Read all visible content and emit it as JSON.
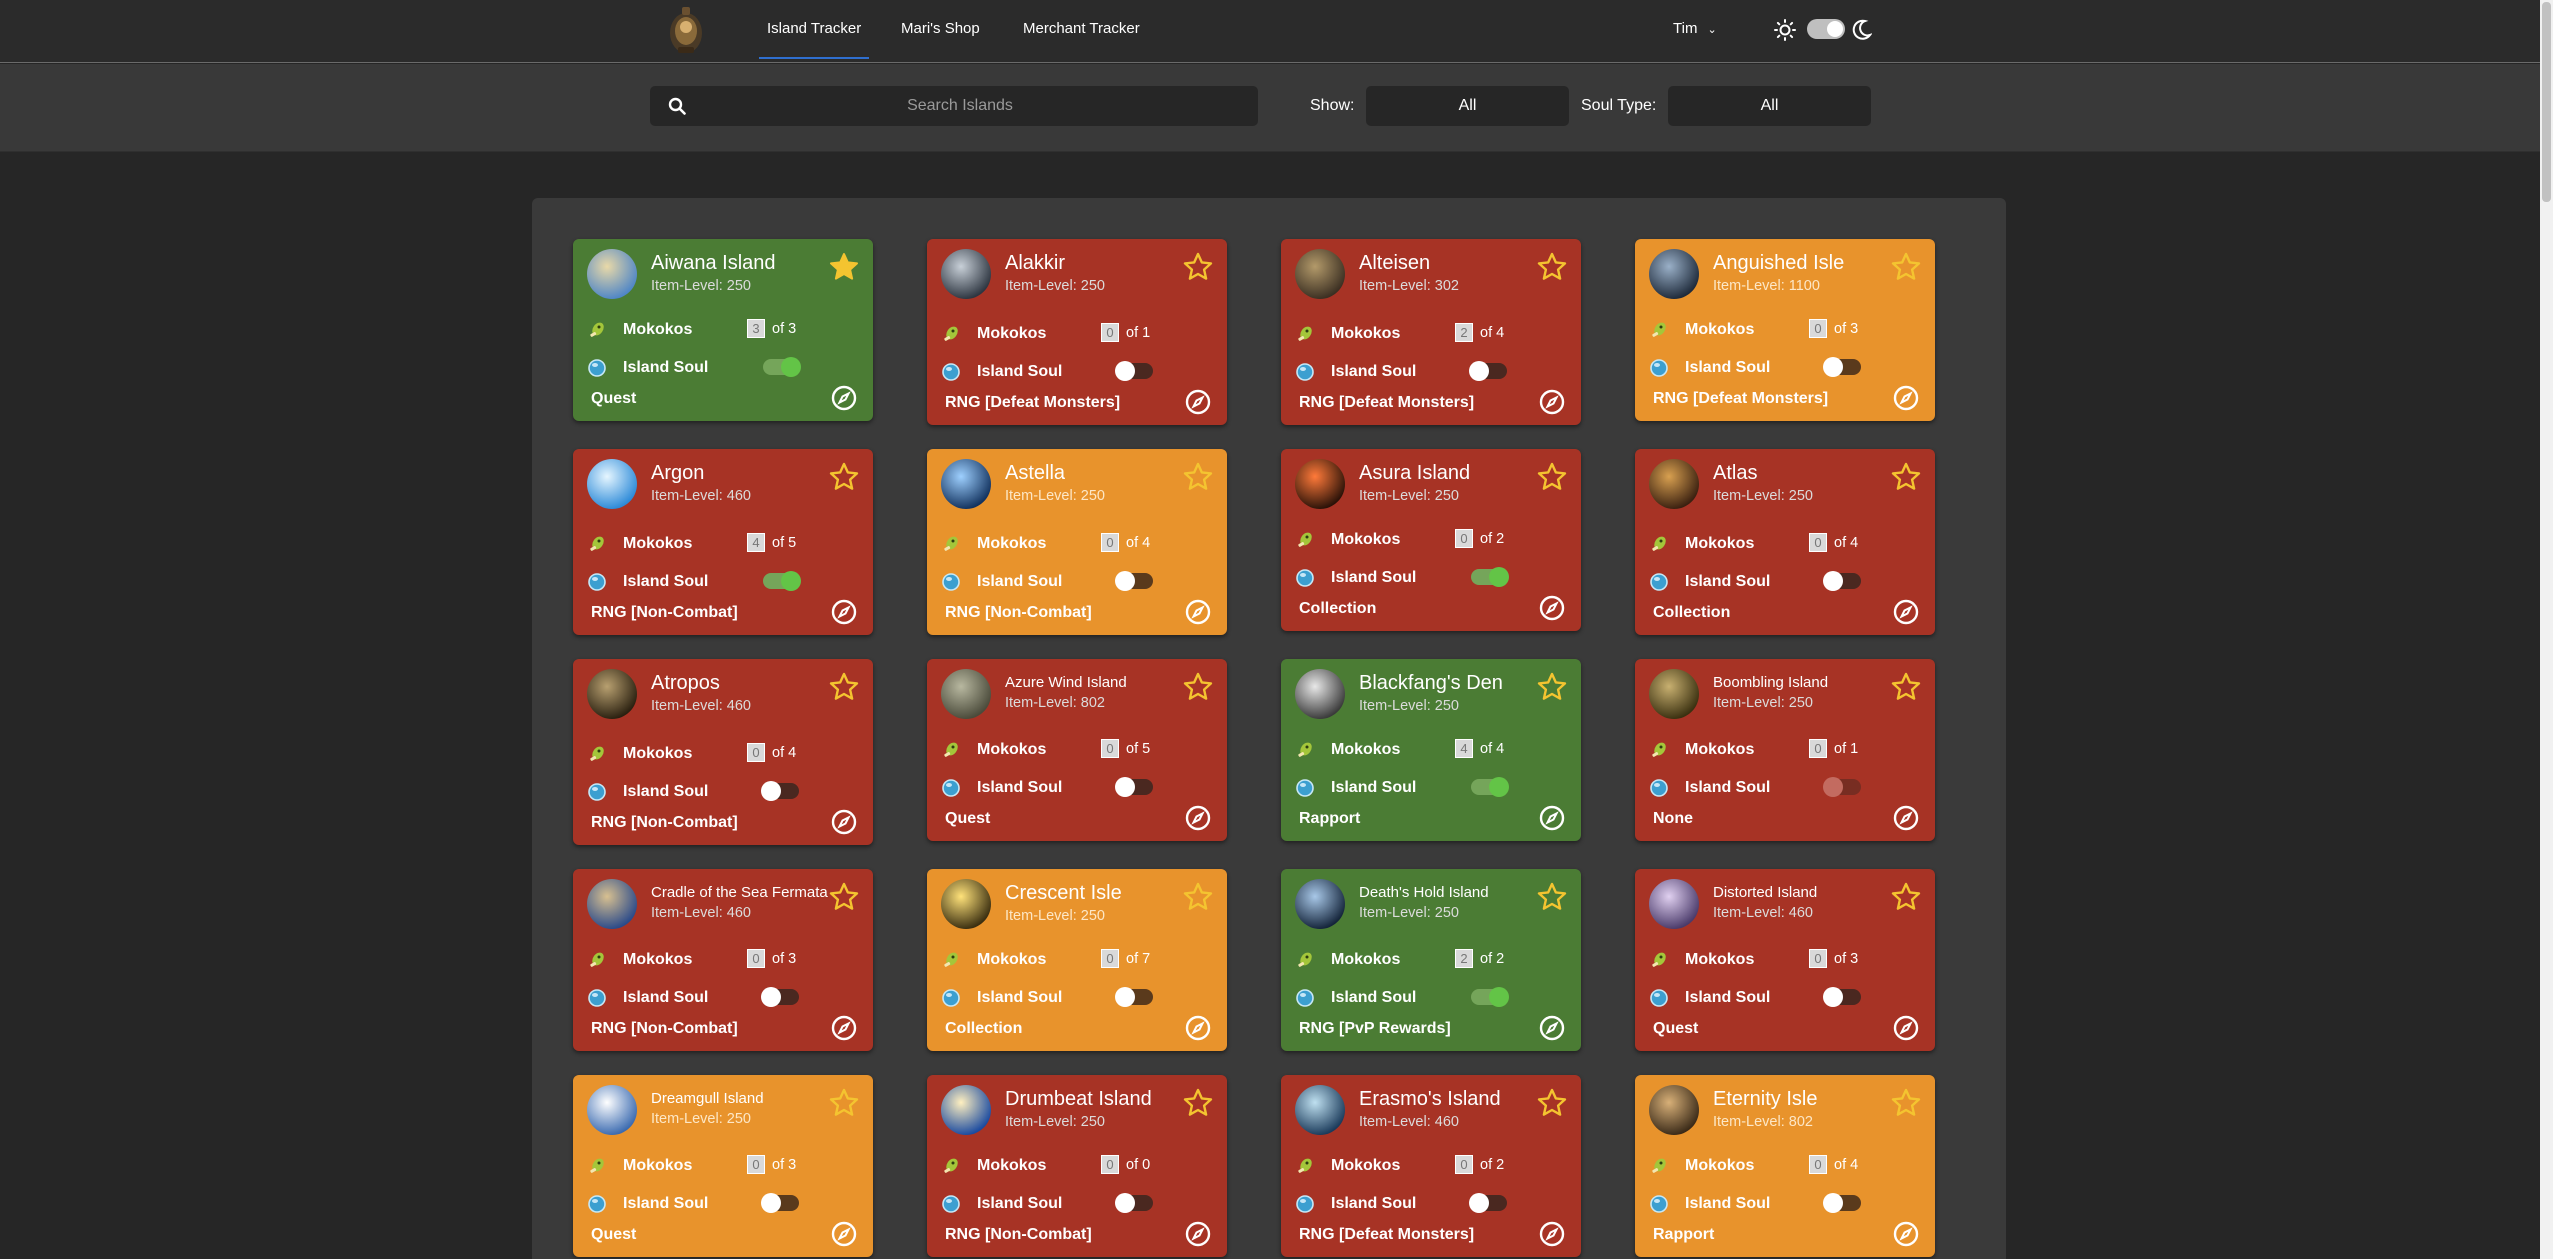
{
  "nav": {
    "links": [
      "Island Tracker",
      "Mari's Shop",
      "Merchant Tracker"
    ],
    "user": "Tim"
  },
  "filters": {
    "search_placeholder": "Search Islands",
    "show_label": "Show:",
    "show_value": "All",
    "soul_label": "Soul Type:",
    "soul_value": "All"
  },
  "labels": {
    "mokokos": "Mokokos",
    "island_soul": "Island Soul"
  },
  "colors": {
    "completed": "#4b7c34",
    "incomplete": "#a73325",
    "partial": "#e8932c"
  },
  "islands": [
    {
      "name": "Aiwana Island",
      "ilvl": "Item-Level: 250",
      "color": "green",
      "mokoko": "3",
      "of": "of 3",
      "soul": "on",
      "activity": "Quest",
      "avatar": [
        "#e9d9a8",
        "#4f86c6"
      ]
    },
    {
      "name": "Alakkir",
      "ilvl": "Item-Level: 250",
      "color": "red",
      "mokoko": "0",
      "of": "of 1",
      "soul": "off",
      "activity": "RNG [Defeat Monsters]",
      "avatar": [
        "#c8d0d8",
        "#2d3540"
      ]
    },
    {
      "name": "Alteisen",
      "ilvl": "Item-Level: 302",
      "color": "red",
      "mokoko": "2",
      "of": "of 4",
      "soul": "off",
      "activity": "RNG [Defeat Monsters]",
      "avatar": [
        "#b39a6a",
        "#3b2f22"
      ]
    },
    {
      "name": "Anguished Isle",
      "ilvl": "Item-Level: 1100",
      "color": "orange",
      "mokoko": "0",
      "of": "of 3",
      "soul": "off",
      "activity": "RNG [Defeat Monsters]",
      "avatar": [
        "#9ab0c8",
        "#1e2a3a"
      ]
    },
    {
      "name": "Argon",
      "ilvl": "Item-Level: 460",
      "color": "red",
      "mokoko": "4",
      "of": "of 5",
      "soul": "on",
      "activity": "RNG [Non-Combat]",
      "avatar": [
        "#e6f6ff",
        "#2c8ad8"
      ]
    },
    {
      "name": "Astella",
      "ilvl": "Item-Level: 250",
      "color": "orange",
      "mokoko": "0",
      "of": "of 4",
      "soul": "off",
      "activity": "RNG [Non-Combat]",
      "avatar": [
        "#9ed0ff",
        "#12325e"
      ]
    },
    {
      "name": "Asura Island",
      "ilvl": "Item-Level: 250",
      "color": "red",
      "mokoko": "0",
      "of": "of 2",
      "soul": "on",
      "activity": "Collection",
      "avatar": [
        "#ff7a3a",
        "#2a1208"
      ]
    },
    {
      "name": "Atlas",
      "ilvl": "Item-Level: 250",
      "color": "red",
      "mokoko": "0",
      "of": "of 4",
      "soul": "off",
      "activity": "Collection",
      "avatar": [
        "#d8a050",
        "#3a2010"
      ]
    },
    {
      "name": "Atropos",
      "ilvl": "Item-Level: 460",
      "color": "red",
      "mokoko": "0",
      "of": "of 4",
      "soul": "off",
      "activity": "RNG [Non-Combat]",
      "avatar": [
        "#b8a070",
        "#2a2010"
      ]
    },
    {
      "name": "Azure Wind Island",
      "ilvl": "Item-Level: 802",
      "color": "red",
      "mokoko": "0",
      "of": "of 5",
      "soul": "off",
      "activity": "Quest",
      "avatar": [
        "#b8b8a0",
        "#4a4a3a"
      ]
    },
    {
      "name": "Blackfang's Den",
      "ilvl": "Item-Level: 250",
      "color": "green",
      "mokoko": "4",
      "of": "of 4",
      "soul": "on",
      "activity": "Rapport",
      "avatar": [
        "#e8e8e8",
        "#3a3a3a"
      ]
    },
    {
      "name": "Boombling Island",
      "ilvl": "Item-Level: 250",
      "color": "red",
      "mokoko": "0",
      "of": "of 1",
      "soul": "disabled",
      "activity": "None",
      "avatar": [
        "#c8b070",
        "#3a3010"
      ]
    },
    {
      "name": "Cradle of the Sea Fermata",
      "ilvl": "Item-Level: 460",
      "color": "red",
      "mokoko": "0",
      "of": "of 3",
      "soul": "off",
      "activity": "RNG [Non-Combat]",
      "avatar": [
        "#d8c090",
        "#2a4a8a"
      ]
    },
    {
      "name": "Crescent Isle",
      "ilvl": "Item-Level: 250",
      "color": "orange",
      "mokoko": "0",
      "of": "of 7",
      "soul": "off",
      "activity": "Collection",
      "avatar": [
        "#ffe27a",
        "#3a2e10"
      ]
    },
    {
      "name": "Death's Hold Island",
      "ilvl": "Item-Level: 250",
      "color": "green",
      "mokoko": "2",
      "of": "of 2",
      "soul": "on",
      "activity": "RNG [PvP Rewards]",
      "avatar": [
        "#a8c8e8",
        "#14243a"
      ]
    },
    {
      "name": "Distorted Island",
      "ilvl": "Item-Level: 460",
      "color": "red",
      "mokoko": "0",
      "of": "of 3",
      "soul": "off",
      "activity": "Quest",
      "avatar": [
        "#e0d0f0",
        "#4a3a6a"
      ]
    },
    {
      "name": "Dreamgull Island",
      "ilvl": "Item-Level: 250",
      "color": "orange",
      "mokoko": "0",
      "of": "of 3",
      "soul": "off",
      "activity": "Quest",
      "avatar": [
        "#ffffff",
        "#3a6ab0"
      ]
    },
    {
      "name": "Drumbeat Island",
      "ilvl": "Item-Level: 250",
      "color": "red",
      "mokoko": "0",
      "of": "of 0",
      "soul": "off",
      "activity": "RNG [Non-Combat]",
      "avatar": [
        "#fff0c0",
        "#1a4aa0"
      ]
    },
    {
      "name": "Erasmo's Island",
      "ilvl": "Item-Level: 460",
      "color": "red",
      "mokoko": "0",
      "of": "of 2",
      "soul": "off",
      "activity": "RNG [Defeat Monsters]",
      "avatar": [
        "#bfe0f0",
        "#1a3a5a"
      ]
    },
    {
      "name": "Eternity Isle",
      "ilvl": "Item-Level: 802",
      "color": "orange",
      "mokoko": "0",
      "of": "of 4",
      "soul": "off",
      "activity": "Rapport",
      "avatar": [
        "#d8b078",
        "#3a2a18"
      ]
    }
  ]
}
